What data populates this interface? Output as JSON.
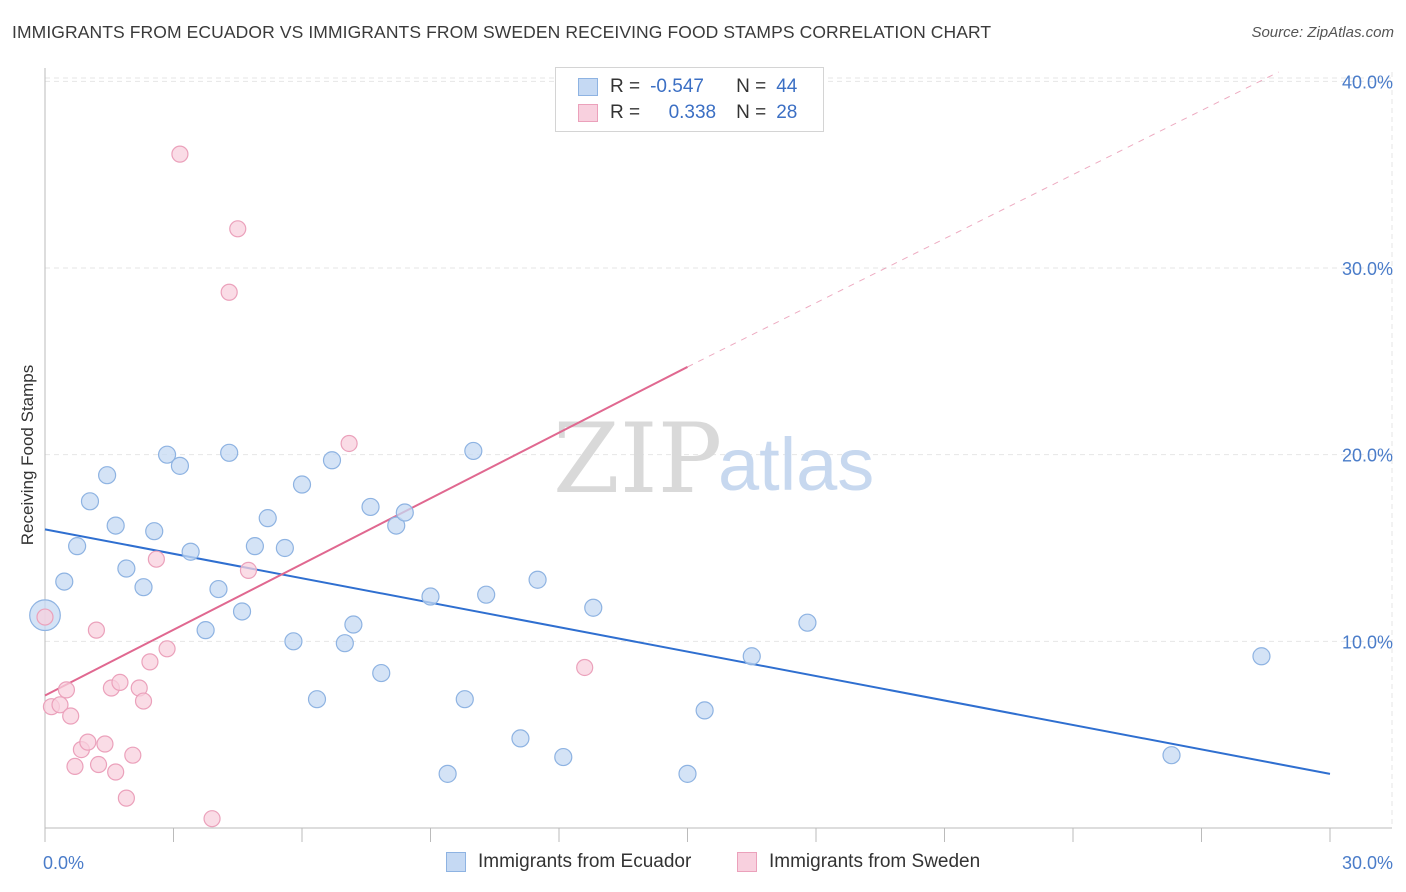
{
  "title": "IMMIGRANTS FROM ECUADOR VS IMMIGRANTS FROM SWEDEN RECEIVING FOOD STAMPS CORRELATION CHART",
  "source": "Source: ZipAtlas.com",
  "watermark": {
    "zip": "ZIP",
    "atlas": "atlas"
  },
  "legend": {
    "r_label": "R =",
    "n_label": "N =",
    "series": [
      {
        "name": "Immigrants from Ecuador",
        "r": "-0.547",
        "n": "44"
      },
      {
        "name": "Immigrants from Sweden",
        "r": "0.338",
        "n": "28"
      }
    ]
  },
  "colors": {
    "ecuador_fill": "#c5d9f3",
    "ecuador_stroke": "#8eb3e2",
    "ecuador_line": "#2f6fd0",
    "sweden_fill": "#f8d0de",
    "sweden_stroke": "#eba1bb",
    "sweden_line": "#e06890",
    "grid": "#e6e6e6",
    "tick": "#4a7cc9"
  },
  "chart_data": {
    "type": "scatter",
    "title": "IMMIGRANTS FROM ECUADOR VS IMMIGRANTS FROM SWEDEN RECEIVING FOOD STAMPS CORRELATION CHART",
    "xlabel": "",
    "ylabel": "Receiving Food Stamps",
    "xlim": [
      0,
      30
    ],
    "ylim": [
      0,
      40.5
    ],
    "x_tick_labels": [
      {
        "value": 0,
        "label": "0.0%"
      },
      {
        "value": 30,
        "label": "30.0%"
      }
    ],
    "y_tick_labels": [
      {
        "value": 10,
        "label": "10.0%"
      },
      {
        "value": 20,
        "label": "20.0%"
      },
      {
        "value": 30,
        "label": "30.0%"
      },
      {
        "value": 40,
        "label": "40.0%"
      }
    ],
    "x_minor_ticks": [
      0,
      3,
      6,
      9,
      12,
      15,
      18,
      21,
      24,
      27,
      30
    ],
    "series": [
      {
        "name": "Immigrants from Ecuador",
        "points": [
          {
            "x": 0.0,
            "y": 11.4,
            "size": 1.8
          },
          {
            "x": 0.45,
            "y": 13.2
          },
          {
            "x": 0.75,
            "y": 15.1
          },
          {
            "x": 1.05,
            "y": 17.5
          },
          {
            "x": 1.45,
            "y": 18.9
          },
          {
            "x": 1.65,
            "y": 16.2
          },
          {
            "x": 1.9,
            "y": 13.9
          },
          {
            "x": 2.3,
            "y": 12.9
          },
          {
            "x": 2.55,
            "y": 15.9
          },
          {
            "x": 2.85,
            "y": 20.0
          },
          {
            "x": 3.15,
            "y": 19.4
          },
          {
            "x": 3.4,
            "y": 14.8
          },
          {
            "x": 3.75,
            "y": 10.6
          },
          {
            "x": 4.05,
            "y": 12.8
          },
          {
            "x": 4.3,
            "y": 20.1
          },
          {
            "x": 4.6,
            "y": 11.6
          },
          {
            "x": 4.9,
            "y": 15.1
          },
          {
            "x": 5.2,
            "y": 16.6
          },
          {
            "x": 5.6,
            "y": 15.0
          },
          {
            "x": 5.8,
            "y": 10.0
          },
          {
            "x": 6.0,
            "y": 18.4
          },
          {
            "x": 6.35,
            "y": 6.9
          },
          {
            "x": 6.7,
            "y": 19.7
          },
          {
            "x": 7.0,
            "y": 9.9
          },
          {
            "x": 7.2,
            "y": 10.9
          },
          {
            "x": 7.6,
            "y": 17.2
          },
          {
            "x": 7.85,
            "y": 8.3
          },
          {
            "x": 8.2,
            "y": 16.2
          },
          {
            "x": 8.4,
            "y": 16.9
          },
          {
            "x": 9.0,
            "y": 12.4
          },
          {
            "x": 9.4,
            "y": 2.9
          },
          {
            "x": 9.8,
            "y": 6.9
          },
          {
            "x": 10.0,
            "y": 20.2
          },
          {
            "x": 10.3,
            "y": 12.5
          },
          {
            "x": 11.1,
            "y": 4.8
          },
          {
            "x": 11.5,
            "y": 13.3
          },
          {
            "x": 12.1,
            "y": 3.8
          },
          {
            "x": 12.8,
            "y": 11.8
          },
          {
            "x": 15.0,
            "y": 2.9
          },
          {
            "x": 15.4,
            "y": 6.3
          },
          {
            "x": 16.5,
            "y": 9.2
          },
          {
            "x": 17.8,
            "y": 11.0
          },
          {
            "x": 26.3,
            "y": 3.9
          },
          {
            "x": 28.4,
            "y": 9.2
          }
        ],
        "trend": {
          "x": [
            0,
            30
          ],
          "y": [
            16.0,
            2.9
          ],
          "style": "solid"
        }
      },
      {
        "name": "Immigrants from Sweden",
        "points": [
          {
            "x": 0.0,
            "y": 11.3
          },
          {
            "x": 0.15,
            "y": 6.5
          },
          {
            "x": 0.35,
            "y": 6.6
          },
          {
            "x": 0.5,
            "y": 7.4
          },
          {
            "x": 0.6,
            "y": 6.0
          },
          {
            "x": 0.7,
            "y": 3.3
          },
          {
            "x": 0.85,
            "y": 4.2
          },
          {
            "x": 1.0,
            "y": 4.6
          },
          {
            "x": 1.2,
            "y": 10.6
          },
          {
            "x": 1.25,
            "y": 3.4
          },
          {
            "x": 1.4,
            "y": 4.5
          },
          {
            "x": 1.55,
            "y": 7.5
          },
          {
            "x": 1.65,
            "y": 3.0
          },
          {
            "x": 1.75,
            "y": 7.8
          },
          {
            "x": 1.9,
            "y": 1.6
          },
          {
            "x": 2.05,
            "y": 3.9
          },
          {
            "x": 2.2,
            "y": 7.5
          },
          {
            "x": 2.3,
            "y": 6.8
          },
          {
            "x": 2.45,
            "y": 8.9
          },
          {
            "x": 2.6,
            "y": 14.4
          },
          {
            "x": 2.85,
            "y": 9.6
          },
          {
            "x": 3.15,
            "y": 36.1
          },
          {
            "x": 3.9,
            "y": 0.5
          },
          {
            "x": 4.3,
            "y": 28.7
          },
          {
            "x": 4.5,
            "y": 32.1
          },
          {
            "x": 4.75,
            "y": 13.8
          },
          {
            "x": 7.1,
            "y": 20.6
          },
          {
            "x": 12.6,
            "y": 8.6
          }
        ],
        "trend": {
          "x": [
            0,
            15.0
          ],
          "y": [
            7.1,
            24.7
          ],
          "style": "solid"
        },
        "trend_extension": {
          "x": [
            15.0,
            28.8
          ],
          "y": [
            24.7,
            40.5
          ],
          "style": "dashed"
        }
      }
    ]
  }
}
